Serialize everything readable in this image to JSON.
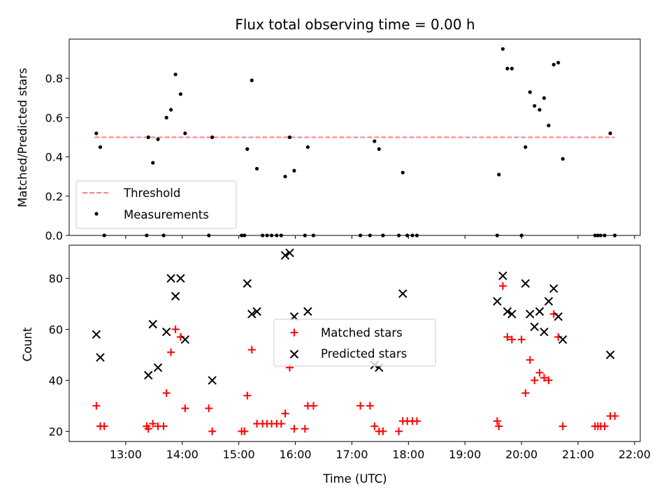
{
  "chart_data": [
    {
      "type": "scatter",
      "title": "Flux total observing time = 0.00 h",
      "xlabel": "",
      "ylabel": "Matched/Predicted stars",
      "xlim": [
        12.0,
        22.1
      ],
      "ylim": [
        0.0,
        1.0
      ],
      "xticks": [
        "13:00",
        "14:00",
        "15:00",
        "16:00",
        "17:00",
        "18:00",
        "19:00",
        "20:00",
        "21:00",
        "22:00"
      ],
      "yticks": [
        "0.0",
        "0.2",
        "0.4",
        "0.6",
        "0.8"
      ],
      "legend_position": "lower left",
      "threshold": {
        "name": "Threshold",
        "y": 0.5,
        "x_range": [
          12.45,
          21.65
        ],
        "color": "#ff7f7f",
        "style": "dashed"
      },
      "series": [
        {
          "name": "Measurements",
          "color": "#000000",
          "marker": "dot",
          "points": [
            [
              12.48,
              0.52
            ],
            [
              12.55,
              0.45
            ],
            [
              12.62,
              0.0
            ],
            [
              13.37,
              0.0
            ],
            [
              13.4,
              0.5
            ],
            [
              13.48,
              0.37
            ],
            [
              13.57,
              0.49
            ],
            [
              13.67,
              0.0
            ],
            [
              13.72,
              0.6
            ],
            [
              13.8,
              0.64
            ],
            [
              13.88,
              0.82
            ],
            [
              13.97,
              0.72
            ],
            [
              14.05,
              0.52
            ],
            [
              14.47,
              0.0
            ],
            [
              14.53,
              0.5
            ],
            [
              15.05,
              0.0
            ],
            [
              15.1,
              0.0
            ],
            [
              15.15,
              0.44
            ],
            [
              15.23,
              0.79
            ],
            [
              15.32,
              0.34
            ],
            [
              15.42,
              0.0
            ],
            [
              15.5,
              0.0
            ],
            [
              15.58,
              0.0
            ],
            [
              15.67,
              0.0
            ],
            [
              15.75,
              0.0
            ],
            [
              15.82,
              0.3
            ],
            [
              15.9,
              0.5
            ],
            [
              15.98,
              0.33
            ],
            [
              16.17,
              0.0
            ],
            [
              16.22,
              0.45
            ],
            [
              16.32,
              0.0
            ],
            [
              17.15,
              0.0
            ],
            [
              17.32,
              0.0
            ],
            [
              17.4,
              0.48
            ],
            [
              17.48,
              0.44
            ],
            [
              17.55,
              0.0
            ],
            [
              17.83,
              0.0
            ],
            [
              17.9,
              0.32
            ],
            [
              17.98,
              0.0
            ],
            [
              18.07,
              0.0
            ],
            [
              18.15,
              0.0
            ],
            [
              19.57,
              0.0
            ],
            [
              19.6,
              0.31
            ],
            [
              19.67,
              0.95
            ],
            [
              19.75,
              0.85
            ],
            [
              19.83,
              0.85
            ],
            [
              20.0,
              0.0
            ],
            [
              20.07,
              0.45
            ],
            [
              20.15,
              0.73
            ],
            [
              20.23,
              0.66
            ],
            [
              20.32,
              0.64
            ],
            [
              20.4,
              0.7
            ],
            [
              20.48,
              0.56
            ],
            [
              20.57,
              0.87
            ],
            [
              20.65,
              0.88
            ],
            [
              20.73,
              0.39
            ],
            [
              21.3,
              0.0
            ],
            [
              21.35,
              0.0
            ],
            [
              21.4,
              0.0
            ],
            [
              21.47,
              0.0
            ],
            [
              21.57,
              0.52
            ],
            [
              21.65,
              0.0
            ]
          ]
        }
      ]
    },
    {
      "type": "scatter",
      "title": "",
      "xlabel": "Time (UTC)",
      "ylabel": "Count",
      "xlim": [
        12.0,
        22.1
      ],
      "ylim": [
        16.0,
        93.0
      ],
      "xticks": [
        "13:00",
        "14:00",
        "15:00",
        "16:00",
        "17:00",
        "18:00",
        "19:00",
        "20:00",
        "21:00",
        "22:00"
      ],
      "yticks": [
        "20",
        "40",
        "60",
        "80"
      ],
      "legend_position": "center",
      "series": [
        {
          "name": "Matched stars",
          "color": "#ff0000",
          "marker": "plus",
          "points": [
            [
              12.48,
              30
            ],
            [
              12.55,
              22
            ],
            [
              12.62,
              22
            ],
            [
              13.37,
              22
            ],
            [
              13.4,
              21
            ],
            [
              13.48,
              23
            ],
            [
              13.57,
              22
            ],
            [
              13.67,
              22
            ],
            [
              13.72,
              35
            ],
            [
              13.8,
              51
            ],
            [
              13.88,
              60
            ],
            [
              13.97,
              57
            ],
            [
              14.05,
              29
            ],
            [
              14.47,
              29
            ],
            [
              14.53,
              20
            ],
            [
              15.05,
              20
            ],
            [
              15.1,
              20
            ],
            [
              15.15,
              34
            ],
            [
              15.23,
              52
            ],
            [
              15.32,
              23
            ],
            [
              15.42,
              23
            ],
            [
              15.5,
              23
            ],
            [
              15.58,
              23
            ],
            [
              15.67,
              23
            ],
            [
              15.75,
              23
            ],
            [
              15.82,
              27
            ],
            [
              15.9,
              45
            ],
            [
              15.98,
              21
            ],
            [
              16.17,
              21
            ],
            [
              16.22,
              30
            ],
            [
              16.32,
              30
            ],
            [
              17.15,
              30
            ],
            [
              17.32,
              30
            ],
            [
              17.4,
              22
            ],
            [
              17.48,
              20
            ],
            [
              17.55,
              20
            ],
            [
              17.83,
              20
            ],
            [
              17.9,
              24
            ],
            [
              17.98,
              24
            ],
            [
              18.07,
              24
            ],
            [
              18.15,
              24
            ],
            [
              19.57,
              24
            ],
            [
              19.6,
              22
            ],
            [
              19.67,
              77
            ],
            [
              19.75,
              57
            ],
            [
              19.83,
              56
            ],
            [
              20.0,
              56
            ],
            [
              20.07,
              35
            ],
            [
              20.15,
              48
            ],
            [
              20.23,
              40
            ],
            [
              20.32,
              43
            ],
            [
              20.4,
              41
            ],
            [
              20.48,
              40
            ],
            [
              20.57,
              66
            ],
            [
              20.65,
              57
            ],
            [
              20.73,
              22
            ],
            [
              21.3,
              22
            ],
            [
              21.35,
              22
            ],
            [
              21.4,
              22
            ],
            [
              21.47,
              22
            ],
            [
              21.57,
              26
            ],
            [
              21.65,
              26
            ]
          ]
        },
        {
          "name": "Predicted stars",
          "color": "#000000",
          "marker": "x",
          "points": [
            [
              12.48,
              58
            ],
            [
              12.55,
              49
            ],
            [
              13.4,
              42
            ],
            [
              13.48,
              62
            ],
            [
              13.57,
              45
            ],
            [
              13.72,
              59
            ],
            [
              13.8,
              80
            ],
            [
              13.88,
              73
            ],
            [
              13.97,
              80
            ],
            [
              14.05,
              56
            ],
            [
              14.53,
              40
            ],
            [
              15.15,
              78
            ],
            [
              15.23,
              66
            ],
            [
              15.32,
              67
            ],
            [
              15.82,
              89
            ],
            [
              15.9,
              90
            ],
            [
              15.98,
              65
            ],
            [
              16.22,
              67
            ],
            [
              17.4,
              46
            ],
            [
              17.48,
              45
            ],
            [
              17.9,
              74
            ],
            [
              19.57,
              71
            ],
            [
              19.67,
              81
            ],
            [
              19.75,
              67
            ],
            [
              19.83,
              66
            ],
            [
              20.07,
              78
            ],
            [
              20.15,
              66
            ],
            [
              20.23,
              61
            ],
            [
              20.32,
              67
            ],
            [
              20.4,
              59
            ],
            [
              20.48,
              71
            ],
            [
              20.57,
              76
            ],
            [
              20.65,
              65
            ],
            [
              20.73,
              56
            ],
            [
              21.57,
              50
            ]
          ]
        }
      ]
    }
  ]
}
